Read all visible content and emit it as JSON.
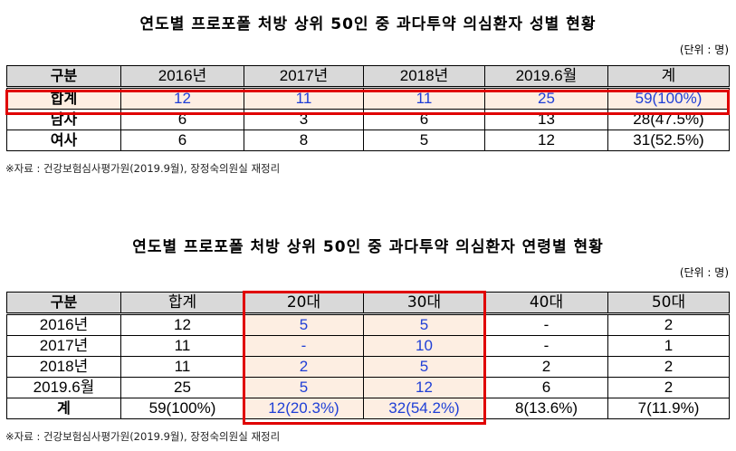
{
  "gender": {
    "title": "연도별 프로포폴 처방 상위 50인 중 과다투약 의심환자 성별 현황",
    "unit": "(단위 : 명)",
    "headers": [
      "구분",
      "2016년",
      "2017년",
      "2018년",
      "2019.6월",
      "계"
    ],
    "rows": [
      {
        "label": "합계",
        "cells": [
          "12",
          "11",
          "11",
          "25",
          "59(100%)"
        ]
      },
      {
        "label": "남자",
        "cells": [
          "6",
          "3",
          "6",
          "13",
          "28(47.5%)"
        ]
      },
      {
        "label": "여사",
        "cells": [
          "6",
          "8",
          "5",
          "12",
          "31(52.5%)"
        ]
      }
    ],
    "source": "※자료 : 건강보험심사평가원(2019.9월), 장정숙의원실 재정리"
  },
  "age": {
    "title": "연도별 프로포폴 처방 상위 50인 중 과다투약 의심환자 연령별 현황",
    "unit": "(단위 : 명)",
    "headers": [
      "구분",
      "합계",
      "20대",
      "30대",
      "40대",
      "50대"
    ],
    "rows": [
      {
        "label": "2016년",
        "cells": [
          "12",
          "5",
          "5",
          "-",
          "2"
        ]
      },
      {
        "label": "2017년",
        "cells": [
          "11",
          "-",
          "10",
          "-",
          "1"
        ]
      },
      {
        "label": "2018년",
        "cells": [
          "11",
          "2",
          "5",
          "2",
          "2"
        ]
      },
      {
        "label": "2019.6월",
        "cells": [
          "25",
          "5",
          "12",
          "6",
          "2"
        ]
      },
      {
        "label": "계",
        "cells": [
          "59(100%)",
          "12(20.3%)",
          "32(54.2%)",
          "8(13.6%)",
          "7(11.9%)"
        ]
      }
    ],
    "source": "※자료 : 건강보험심사평가원(2019.9월), 장정숙의원실 재정리"
  },
  "colors": {
    "highlight_border": "#e00000",
    "highlight_fill": "#fdeee2",
    "blue_text": "#1f3fd6",
    "header_fill": "#d9d9d9"
  }
}
